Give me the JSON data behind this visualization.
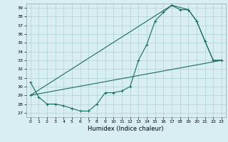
{
  "xlabel": "Humidex (Indice chaleur)",
  "xlim": [
    -0.5,
    23.5
  ],
  "ylim": [
    26.5,
    39.5
  ],
  "yticks": [
    27,
    28,
    29,
    30,
    31,
    32,
    33,
    34,
    35,
    36,
    37,
    38,
    39
  ],
  "xticks": [
    0,
    1,
    2,
    3,
    4,
    5,
    6,
    7,
    8,
    9,
    10,
    11,
    12,
    13,
    14,
    15,
    16,
    17,
    18,
    19,
    20,
    21,
    22,
    23
  ],
  "bg_color": "#d8eef0",
  "grid_color": "#b0d0d5",
  "line_color": "#1a6b60",
  "curve1_x": [
    0,
    1,
    2,
    3,
    4,
    5,
    6,
    7,
    8,
    9,
    10,
    11,
    12,
    13,
    14,
    15,
    16,
    17,
    18,
    19,
    20,
    21,
    22,
    23
  ],
  "curve1_y": [
    30.5,
    28.8,
    28.0,
    28.0,
    27.8,
    27.5,
    27.2,
    27.2,
    28.0,
    29.3,
    29.3,
    29.5,
    30.0,
    33.0,
    34.8,
    37.5,
    38.5,
    39.3,
    38.8,
    38.8,
    37.5,
    35.2,
    33.0,
    33.0
  ],
  "curve2_x": [
    0,
    23
  ],
  "curve2_y": [
    29.0,
    33.0
  ],
  "curve3_x": [
    0,
    17,
    19,
    20,
    21,
    22,
    23
  ],
  "curve3_y": [
    29.0,
    39.3,
    38.8,
    37.5,
    35.2,
    33.0,
    33.0
  ]
}
